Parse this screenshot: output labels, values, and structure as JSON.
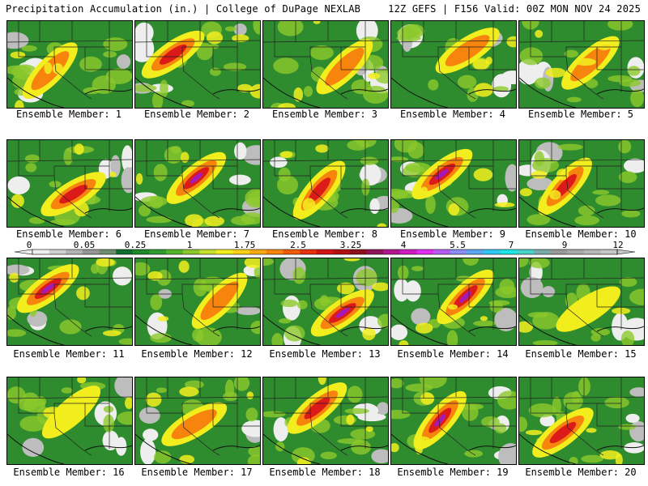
{
  "header": {
    "title_left": "Precipitation Accumulation (in.) | College of DuPage NEXLAB",
    "title_right": "12Z GEFS | F156 Valid: 00Z MON NOV 24 2025"
  },
  "colors": {
    "background": "#ffffff",
    "low": "#2e8b2e",
    "moderate": "#f2ee1e",
    "heavy": "#dd1a1a",
    "extreme": "#a51ab7"
  },
  "colorbar": {
    "unit": "in.",
    "colors": [
      "#eeeeee",
      "#d0d0d0",
      "#b3b3b3",
      "#969696",
      "#6e8e6e",
      "#0f6e2e",
      "#1c8a2a",
      "#2f9c2f",
      "#55b22b",
      "#8cc92c",
      "#c6e02b",
      "#f2ee1e",
      "#fbd018",
      "#f9aa12",
      "#f7840d",
      "#f25a0c",
      "#e6320f",
      "#d31313",
      "#b30f12",
      "#8e0f1a",
      "#8f145a",
      "#b3178f",
      "#d11cc2",
      "#e22ef0",
      "#b65af2",
      "#8c8cf2",
      "#5ca7f2",
      "#2ec8f2",
      "#1ee6e6",
      "#48d3c8",
      "#7aaaa9",
      "#9a9a9a",
      "#a9a9a9",
      "#b7b7b7",
      "#c6c6c6"
    ],
    "labels": [
      "0",
      "0.05",
      "0.25",
      "1",
      "1.75",
      "2.5",
      "3.25",
      "4",
      "5.5",
      "7",
      "9",
      "12"
    ]
  },
  "members": [
    {
      "label": "Ensemble Member: 1",
      "intensity": "moderate"
    },
    {
      "label": "Ensemble Member: 2",
      "intensity": "heavy"
    },
    {
      "label": "Ensemble Member: 3",
      "intensity": "moderate"
    },
    {
      "label": "Ensemble Member: 4",
      "intensity": "moderate"
    },
    {
      "label": "Ensemble Member: 5",
      "intensity": "moderate"
    },
    {
      "label": "Ensemble Member: 6",
      "intensity": "heavy"
    },
    {
      "label": "Ensemble Member: 7",
      "intensity": "extreme"
    },
    {
      "label": "Ensemble Member: 8",
      "intensity": "heavy"
    },
    {
      "label": "Ensemble Member: 9",
      "intensity": "extreme"
    },
    {
      "label": "Ensemble Member: 10",
      "intensity": "heavy"
    },
    {
      "label": "Ensemble Member: 11",
      "intensity": "extreme"
    },
    {
      "label": "Ensemble Member: 12",
      "intensity": "moderate"
    },
    {
      "label": "Ensemble Member: 13",
      "intensity": "extreme"
    },
    {
      "label": "Ensemble Member: 14",
      "intensity": "extreme"
    },
    {
      "label": "Ensemble Member: 15",
      "intensity": "low"
    },
    {
      "label": "Ensemble Member: 16",
      "intensity": "low"
    },
    {
      "label": "Ensemble Member: 17",
      "intensity": "moderate"
    },
    {
      "label": "Ensemble Member: 18",
      "intensity": "heavy"
    },
    {
      "label": "Ensemble Member: 19",
      "intensity": "extreme"
    },
    {
      "label": "Ensemble Member: 20",
      "intensity": "heavy"
    }
  ]
}
